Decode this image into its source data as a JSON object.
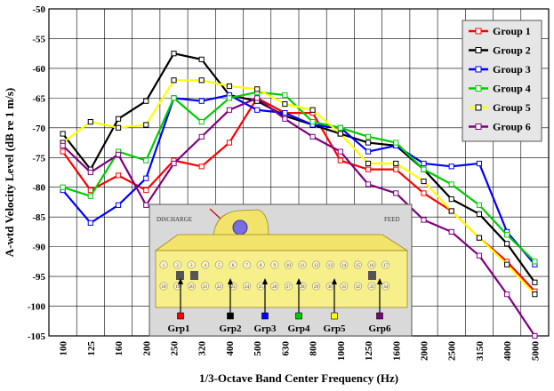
{
  "chart_data": {
    "type": "line",
    "xlabel": "1/3-Octave Band Center Frequency (Hz)",
    "ylabel": "A-wtd Velocity Level (dB re 1 m/s)",
    "x": [
      "100",
      "125",
      "160",
      "200",
      "250",
      "320",
      "400",
      "500",
      "630",
      "800",
      "1000",
      "1250",
      "1600",
      "2000",
      "2500",
      "3150",
      "4000",
      "5000"
    ],
    "ylim": [
      -105,
      -50
    ],
    "yticks": [
      -105,
      -100,
      -95,
      -90,
      -85,
      -80,
      -75,
      -70,
      -65,
      -60,
      -55,
      -50
    ],
    "grid": true,
    "legend_position": "top-right",
    "series": [
      {
        "name": "Group 1",
        "color": "#ff0000",
        "values": [
          -74,
          -80.5,
          -78,
          -80.5,
          -75.5,
          -76.5,
          -72.5,
          -65,
          -67.5,
          -67.5,
          -75.5,
          -77,
          -77,
          -81,
          -84,
          -88.5,
          -92.5,
          -97.5
        ]
      },
      {
        "name": "Group 2",
        "color": "#000000",
        "values": [
          -71,
          -77,
          -68.5,
          -65.5,
          -57.5,
          -58.5,
          -64.5,
          -65.5,
          -68,
          -69.5,
          -71,
          -72.5,
          -73,
          -77,
          -82,
          -84.5,
          -89.5,
          -96
        ]
      },
      {
        "name": "Group 3",
        "color": "#0000ff",
        "values": [
          -80.5,
          -86,
          -83,
          -78.5,
          -65,
          -65.5,
          -64.5,
          -67,
          -67.5,
          -69.5,
          -70,
          -74,
          -73,
          -76,
          -76.5,
          -76,
          -87.5,
          -93
        ]
      },
      {
        "name": "Group 4",
        "color": "#00cc00",
        "values": [
          -80,
          -81.5,
          -74,
          -75.5,
          -65,
          -69,
          -65,
          -64,
          -64.5,
          -69,
          -70,
          -71.5,
          -72.5,
          -77,
          -79.5,
          -83,
          -88,
          -92.5
        ]
      },
      {
        "name": "Group 5",
        "color": "#ffff00",
        "values": [
          -72.5,
          -69,
          -70,
          -69.5,
          -62,
          -62,
          -63,
          -63.5,
          -66,
          -67,
          -71,
          -76,
          -76,
          -79,
          -84,
          -88.5,
          -93,
          -98
        ]
      },
      {
        "name": "Group 6",
        "color": "#800080",
        "values": [
          -73,
          -77.5,
          -74.5,
          -83,
          -76,
          -71.5,
          -67,
          -65,
          -68.5,
          -71.5,
          -74,
          -79.5,
          -81,
          -85.5,
          -87.5,
          -91.5,
          -98,
          -105
        ]
      }
    ]
  },
  "inset": {
    "discharge_label": "DISCHARGE",
    "feed_label": "FEED",
    "sensor_numbers": [
      "1",
      "2",
      "3",
      "4",
      "5",
      "6",
      "7",
      "8",
      "9",
      "10",
      "11",
      "12",
      "13",
      "14",
      "15",
      "16",
      "17",
      "18",
      "19",
      "20",
      "21",
      "22",
      "23",
      "24",
      "25",
      "26",
      "27",
      "28",
      "29",
      "30",
      "31",
      "32",
      "33",
      "34"
    ],
    "groups": [
      {
        "label": "Grp1",
        "color": "#ff0000"
      },
      {
        "label": "Grp2",
        "color": "#000000"
      },
      {
        "label": "Grp3",
        "color": "#0000ff"
      },
      {
        "label": "Grp4",
        "color": "#00cc00"
      },
      {
        "label": "Grp5",
        "color": "#ffff00"
      },
      {
        "label": "Grp6",
        "color": "#800080"
      }
    ]
  }
}
